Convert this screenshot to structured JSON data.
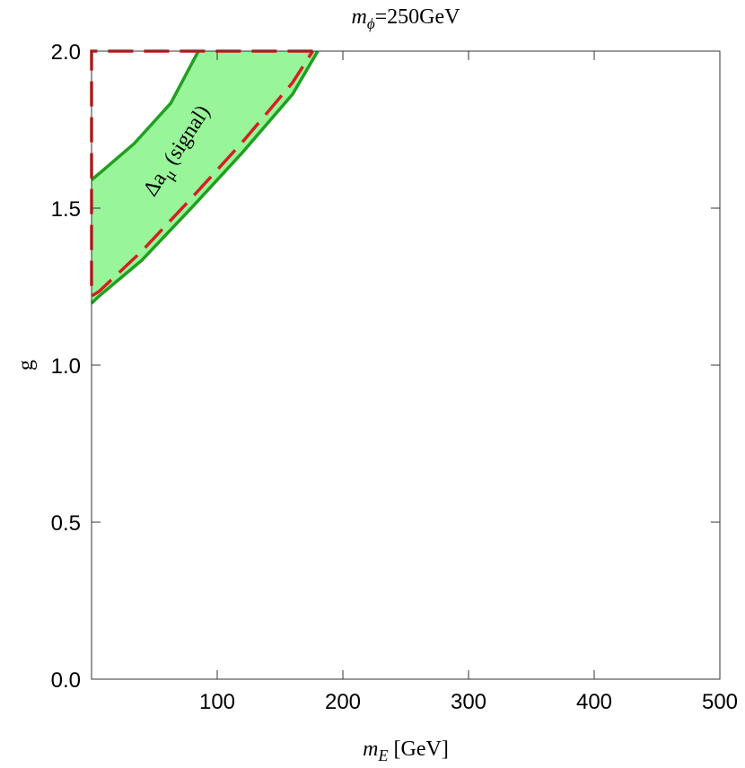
{
  "chart_data": {
    "type": "line",
    "title": {
      "symbol": "m",
      "subscript": "ϕ",
      "text": "=250GeV"
    },
    "xlabel": {
      "symbol": "m",
      "subscript": "E",
      "text": " [GeV]"
    },
    "ylabel": "g",
    "annotation": {
      "symbol": "Δa",
      "subscript": "μ",
      "text": " (signal)"
    },
    "fill": "#99f599",
    "series": [
      {
        "color": "#1fa01f",
        "x": [
          0,
          9,
          34,
          63,
          85
        ],
        "values": [
          1.59,
          1.62,
          1.706,
          1.834,
          2.0
        ]
      },
      {
        "color": "#1fa01f",
        "x": [
          180,
          160,
          120,
          80,
          40,
          6,
          0
        ],
        "values": [
          2.0,
          1.863,
          1.677,
          1.503,
          1.334,
          1.22,
          1.197
        ]
      },
      {
        "color": "#d42020",
        "dashed": true,
        "x": [
          176,
          0,
          0,
          6,
          40,
          80,
          120,
          160,
          176
        ],
        "values": [
          2.0,
          2.0,
          1.22,
          1.235,
          1.363,
          1.534,
          1.71,
          1.9,
          2.0
        ]
      }
    ],
    "xlim": [
      0,
      500
    ],
    "xticks": [
      100,
      200,
      300,
      400,
      500
    ],
    "ylim": [
      0,
      2
    ],
    "yticks": [
      {
        "value": 0,
        "label": "0.0"
      },
      {
        "value": 0.5,
        "label": "0.5"
      },
      {
        "value": 1,
        "label": "1.0"
      },
      {
        "value": 1.5,
        "label": "1.5"
      },
      {
        "value": 2,
        "label": "2.0"
      }
    ]
  }
}
